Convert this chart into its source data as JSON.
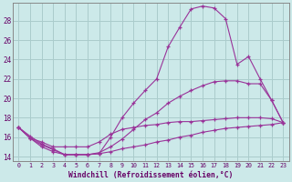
{
  "xlabel": "Windchill (Refroidissement éolien,°C)",
  "background_color": "#cce9e9",
  "grid_color": "#aacccc",
  "line_color": "#993399",
  "xlim": [
    -0.5,
    23.5
  ],
  "ylim": [
    13.5,
    29.8
  ],
  "yticks": [
    14,
    16,
    18,
    20,
    22,
    24,
    26,
    28
  ],
  "xticks": [
    0,
    1,
    2,
    3,
    4,
    5,
    6,
    7,
    8,
    9,
    10,
    11,
    12,
    13,
    14,
    15,
    16,
    17,
    18,
    19,
    20,
    21,
    22,
    23
  ],
  "hours": [
    0,
    1,
    2,
    3,
    4,
    5,
    6,
    7,
    8,
    9,
    10,
    11,
    12,
    13,
    14,
    15,
    16,
    17,
    18,
    19,
    20,
    21,
    22,
    23
  ],
  "curve1": [
    17.0,
    16.1,
    15.3,
    14.8,
    14.2,
    14.2,
    14.2,
    14.3,
    16.0,
    18.0,
    19.5,
    20.8,
    22.0,
    25.3,
    27.3,
    29.2,
    29.5,
    29.3,
    28.2,
    23.5,
    24.3,
    22.0,
    19.8,
    17.5
  ],
  "curve2": [
    17.0,
    15.9,
    15.5,
    15.0,
    15.0,
    15.0,
    15.0,
    15.5,
    16.3,
    16.8,
    17.0,
    17.2,
    17.3,
    17.5,
    17.6,
    17.6,
    17.7,
    17.8,
    17.9,
    18.0,
    18.0,
    18.0,
    17.9,
    17.5
  ],
  "curve3": [
    17.0,
    15.9,
    15.0,
    14.5,
    14.2,
    14.2,
    14.2,
    14.3,
    14.5,
    14.8,
    15.0,
    15.2,
    15.5,
    15.7,
    16.0,
    16.2,
    16.5,
    16.7,
    16.9,
    17.0,
    17.1,
    17.2,
    17.3,
    17.5
  ],
  "curve4": [
    17.0,
    15.9,
    15.2,
    14.7,
    14.2,
    14.2,
    14.2,
    14.4,
    15.0,
    15.8,
    16.8,
    17.8,
    18.5,
    19.5,
    20.2,
    20.8,
    21.3,
    21.7,
    21.8,
    21.8,
    21.5,
    21.5,
    19.8,
    17.5
  ]
}
